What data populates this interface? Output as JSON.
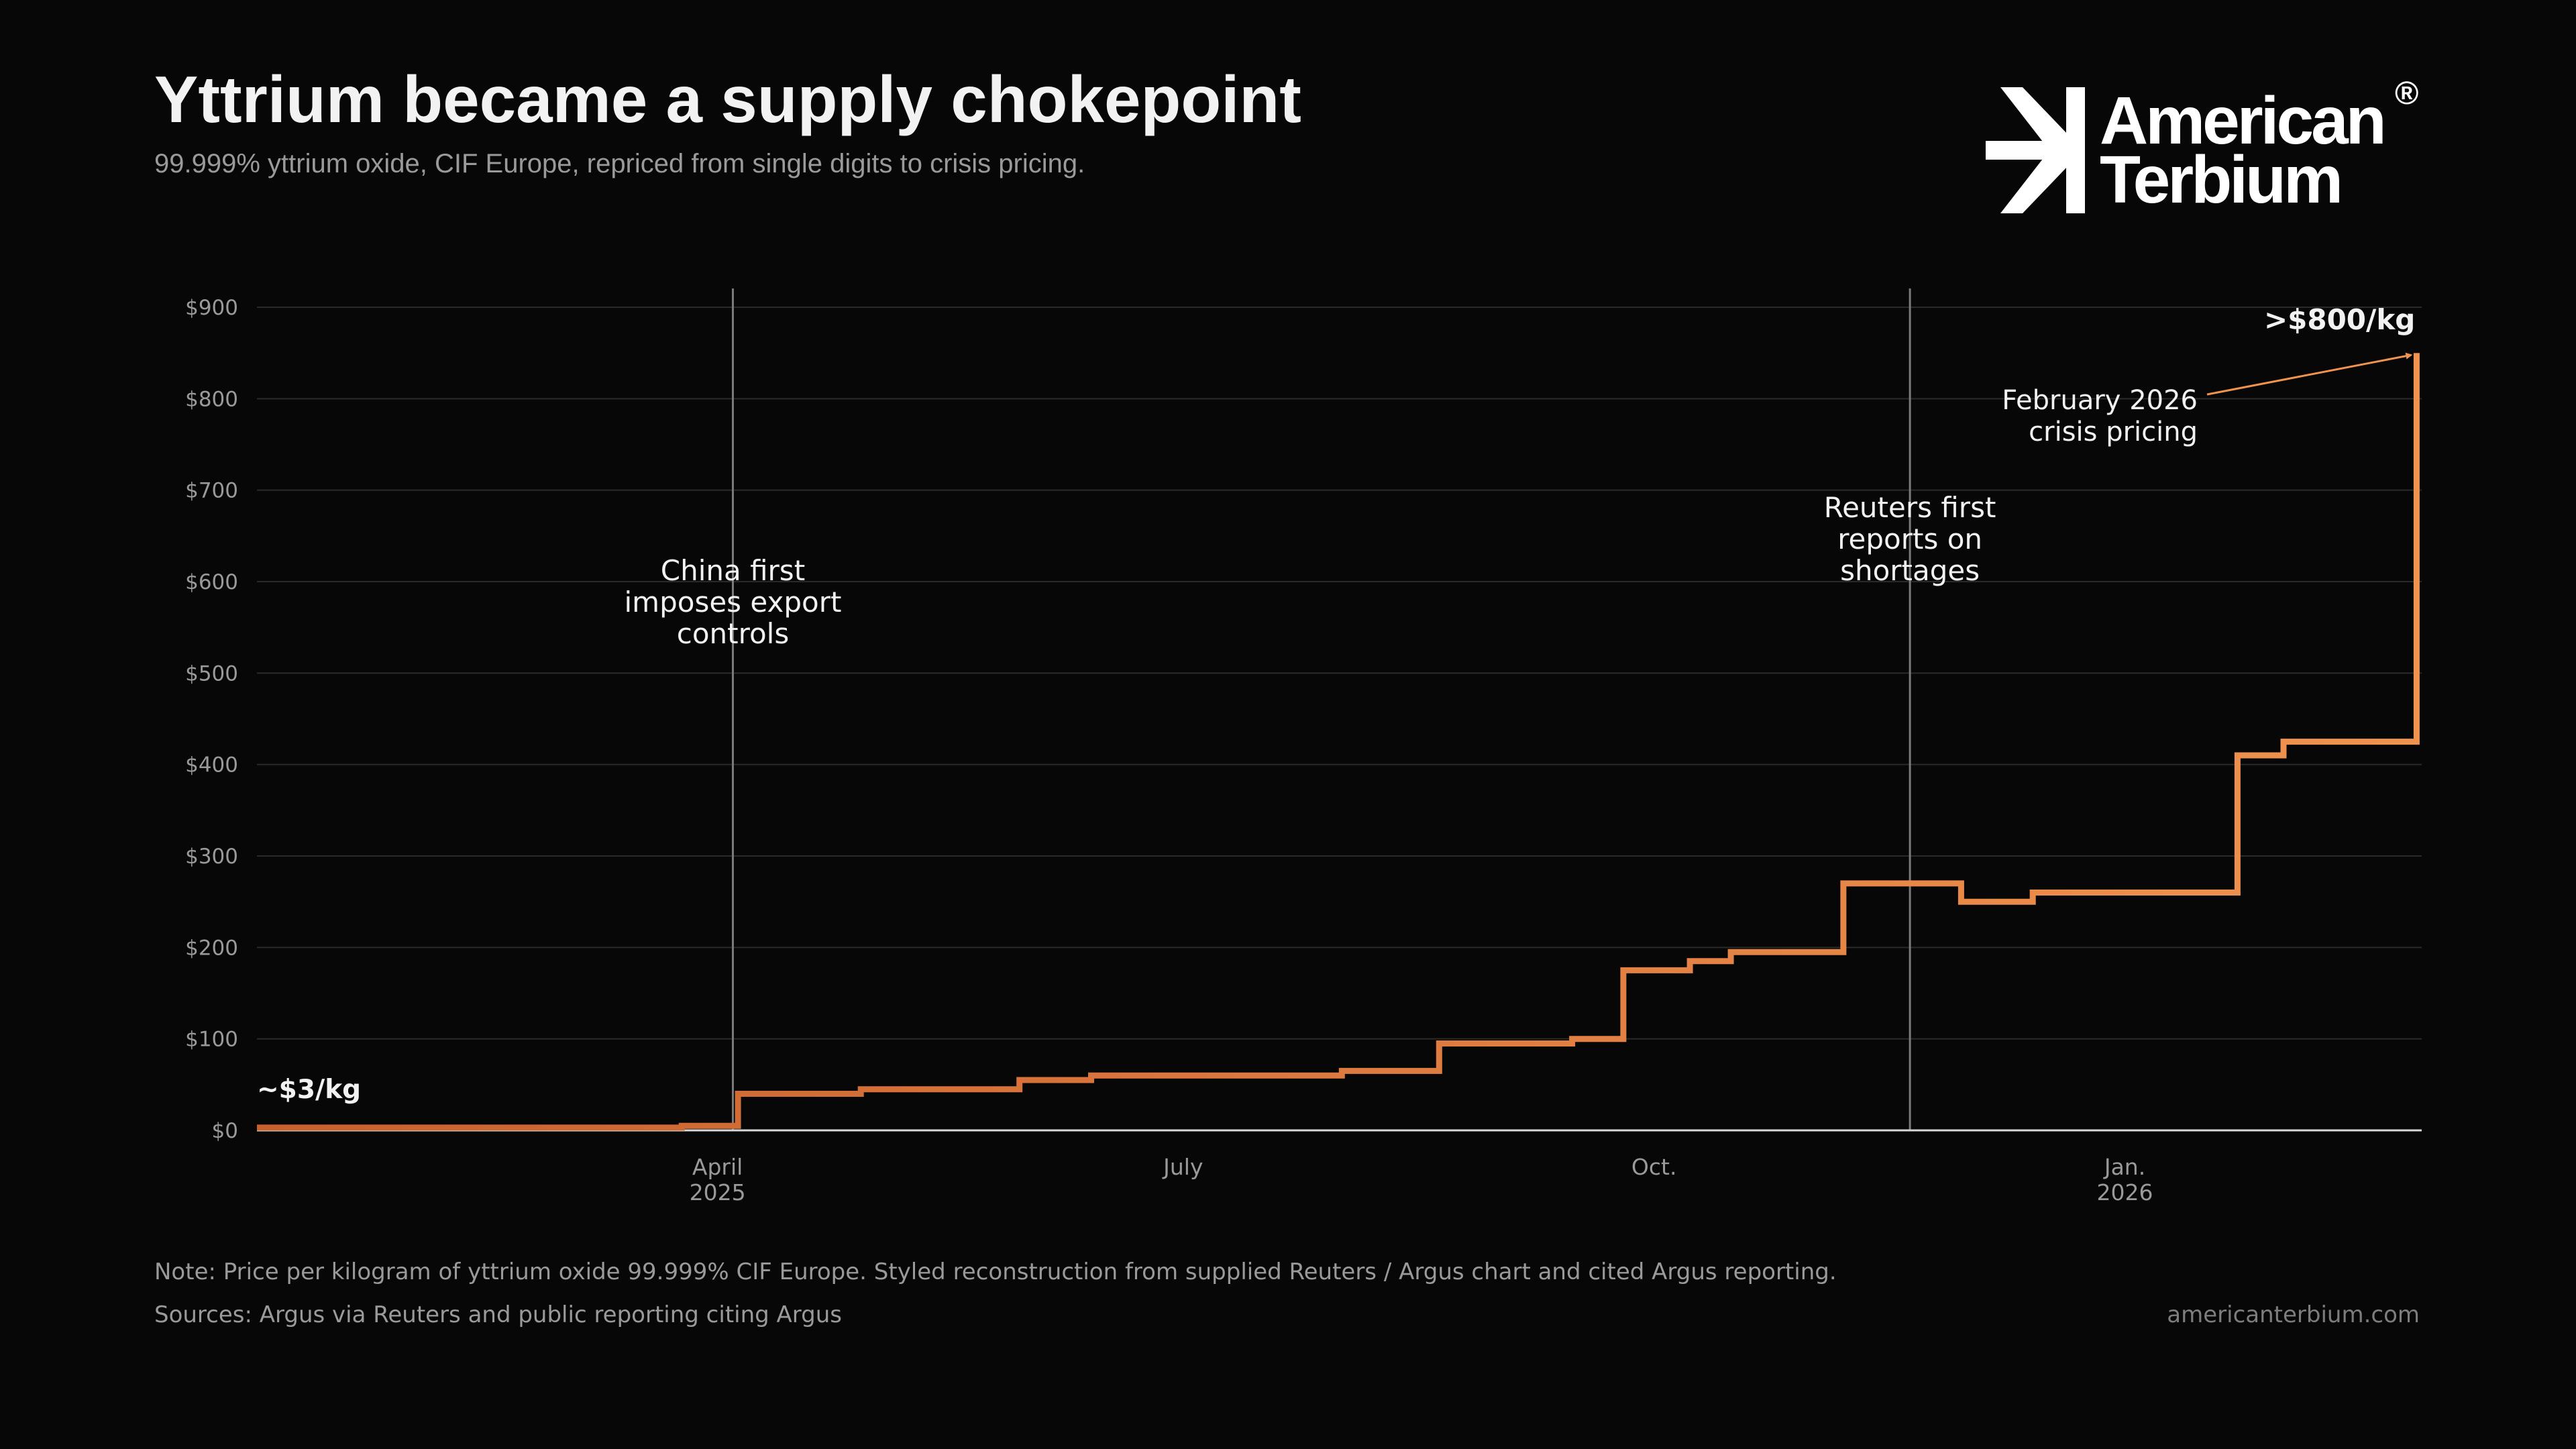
{
  "header": {
    "title": "Yttrium became a supply chokepoint",
    "subtitle": "99.999% yttrium oxide, CIF Europe, repriced from single digits to crisis pricing."
  },
  "logo": {
    "name_line1": "American",
    "name_line2": "Terbium",
    "registered_mark": "®",
    "icon": "arrow-burst-icon"
  },
  "colors": {
    "background": "#070707",
    "line_start": "#c8602e",
    "line_end": "#f0934f",
    "grid": "#2a2a2a",
    "axis": "#d8d8d8",
    "event_line": "#7a7a7a",
    "text": "#f2f2f2",
    "muted": "#9a9a9a"
  },
  "chart_data": {
    "type": "line",
    "line_style": "step",
    "title": "",
    "xlabel": "",
    "ylabel": "",
    "ylim": [
      0,
      900
    ],
    "xlim": [
      "2025-01-01",
      "2026-02-28"
    ],
    "yticks": [
      0,
      100,
      200,
      300,
      400,
      500,
      600,
      700,
      800,
      900
    ],
    "ytick_labels": [
      "$0",
      "$100",
      "$200",
      "$300",
      "$400",
      "$500",
      "$600",
      "$700",
      "$800",
      "$900"
    ],
    "xticks": [
      {
        "x": "2025-04-01",
        "label": "April",
        "sublabel": "2025"
      },
      {
        "x": "2025-07-01",
        "label": "July",
        "sublabel": ""
      },
      {
        "x": "2025-10-01",
        "label": "Oct.",
        "sublabel": ""
      },
      {
        "x": "2026-01-01",
        "label": "Jan.",
        "sublabel": "2026"
      }
    ],
    "grid": true,
    "series": [
      {
        "points": [
          {
            "x": "2025-01-01",
            "y": 3
          },
          {
            "x": "2025-03-25",
            "y": 5
          },
          {
            "x": "2025-04-05",
            "y": 40
          },
          {
            "x": "2025-04-29",
            "y": 45
          },
          {
            "x": "2025-05-30",
            "y": 55
          },
          {
            "x": "2025-06-13",
            "y": 60
          },
          {
            "x": "2025-08-01",
            "y": 65
          },
          {
            "x": "2025-08-20",
            "y": 95
          },
          {
            "x": "2025-09-15",
            "y": 100
          },
          {
            "x": "2025-09-25",
            "y": 175
          },
          {
            "x": "2025-10-08",
            "y": 185
          },
          {
            "x": "2025-10-16",
            "y": 195
          },
          {
            "x": "2025-11-07",
            "y": 270
          },
          {
            "x": "2025-11-30",
            "y": 250
          },
          {
            "x": "2025-12-14",
            "y": 260
          },
          {
            "x": "2026-01-18",
            "y": 260
          },
          {
            "x": "2026-01-23",
            "y": 410
          },
          {
            "x": "2026-02-01",
            "y": 425
          },
          {
            "x": "2026-02-27",
            "y": 850
          }
        ]
      }
    ],
    "events": [
      {
        "x": "2025-04-04",
        "lines": [
          "China first",
          "imposes export",
          "controls"
        ]
      },
      {
        "x": "2025-11-20",
        "lines": [
          "Reuters first",
          "reports on",
          "shortages"
        ]
      }
    ],
    "annotations": {
      "start_label": "~$3/kg",
      "end_label": ">$800/kg",
      "arrow_label_lines": [
        "February 2026",
        "crisis pricing"
      ]
    }
  },
  "footer": {
    "note": "Note: Price per kilogram of yttrium oxide 99.999% CIF Europe. Styled reconstruction from supplied Reuters / Argus chart and cited Argus reporting.",
    "sources": "Sources: Argus via Reuters and public reporting citing Argus",
    "website": "americanterbium.com"
  }
}
